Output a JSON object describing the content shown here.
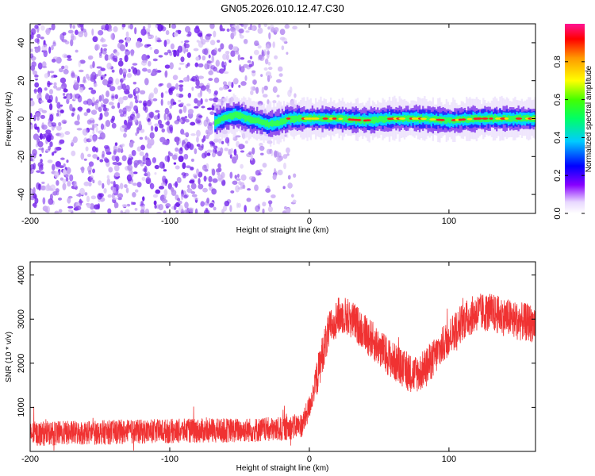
{
  "title": "GN05.2026.010.12.47.C30",
  "chart_data": [
    {
      "type": "heatmap",
      "xlabel": "Height of straight line (km)",
      "ylabel": "Frequency (Hz)",
      "xlim": [
        -200,
        162
      ],
      "ylim": [
        -50,
        50
      ],
      "xticks": [
        -200,
        -100,
        0,
        100
      ],
      "yticks": [
        -40,
        -20,
        0,
        20,
        40
      ],
      "noise_region": {
        "x_min": -200,
        "x_max": -20,
        "freq_min": -50,
        "freq_max": 50
      },
      "signal_track": {
        "x": [
          -68,
          -60,
          -52,
          -45,
          -38,
          -30,
          -22,
          -15,
          0,
          20,
          40,
          60,
          80,
          100,
          120,
          140,
          162
        ],
        "freq": [
          -2,
          1,
          2,
          0,
          -1,
          -3,
          -2,
          0,
          0,
          0,
          -1,
          0,
          0,
          -1,
          0,
          0,
          0
        ]
      },
      "colorbar": {
        "label": "Normalized spectral amplitude",
        "range": [
          0,
          1
        ],
        "ticks": [
          0,
          0.2,
          0.4,
          0.6,
          0.8
        ],
        "tick_labels": [
          "0.0",
          "0.2",
          "0.4",
          "0.6",
          "0.8"
        ]
      }
    },
    {
      "type": "line",
      "xlabel": "Height of straight line (km)",
      "ylabel": "SNR (10 * v/v)",
      "xlim": [
        -200,
        162
      ],
      "ylim": [
        0,
        4300
      ],
      "xticks": [
        -200,
        -100,
        0,
        100
      ],
      "yticks": [
        1000,
        2000,
        3000,
        4000
      ],
      "color": "#f03232",
      "envelope": {
        "x": [
          -200,
          -150,
          -100,
          -50,
          -20,
          -5,
          0,
          5,
          10,
          15,
          20,
          25,
          30,
          40,
          50,
          60,
          70,
          75,
          80,
          90,
          100,
          110,
          120,
          130,
          140,
          150,
          162
        ],
        "y": [
          400,
          430,
          460,
          480,
          500,
          600,
          1000,
          1600,
          2300,
          2800,
          3050,
          3100,
          3000,
          2700,
          2350,
          2050,
          1800,
          1750,
          1800,
          2150,
          2600,
          2950,
          3150,
          3150,
          3050,
          2950,
          2900
        ]
      },
      "noise_half_width": 350
    }
  ],
  "tick_texts": {
    "x": [
      "-200",
      "-100",
      "0",
      "100"
    ],
    "y_top": [
      "-40",
      "-20",
      "0",
      "20",
      "40"
    ],
    "y_bottom": [
      "1000",
      "2000",
      "3000",
      "4000"
    ]
  }
}
